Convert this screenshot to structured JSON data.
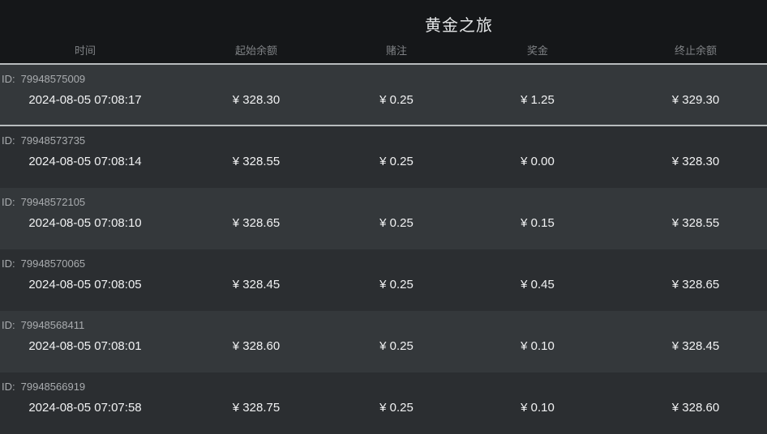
{
  "title": "黄金之旅",
  "table": {
    "columns": [
      "时间",
      "起始余额",
      "赌注",
      "奖金",
      "终止余额"
    ],
    "id_prefix": "ID:",
    "rows": [
      {
        "id": "79948575009",
        "time": "2024-08-05 07:08:17",
        "start_balance": "¥ 328.30",
        "bet": "¥ 0.25",
        "prize": "¥ 1.25",
        "end_balance": "¥ 329.30"
      },
      {
        "id": "79948573735",
        "time": "2024-08-05 07:08:14",
        "start_balance": "¥ 328.55",
        "bet": "¥ 0.25",
        "prize": "¥ 0.00",
        "end_balance": "¥ 328.30"
      },
      {
        "id": "79948572105",
        "time": "2024-08-05 07:08:10",
        "start_balance": "¥ 328.65",
        "bet": "¥ 0.25",
        "prize": "¥ 0.15",
        "end_balance": "¥ 328.55"
      },
      {
        "id": "79948570065",
        "time": "2024-08-05 07:08:05",
        "start_balance": "¥ 328.45",
        "bet": "¥ 0.25",
        "prize": "¥ 0.45",
        "end_balance": "¥ 328.65"
      },
      {
        "id": "79948568411",
        "time": "2024-08-05 07:08:01",
        "start_balance": "¥ 328.60",
        "bet": "¥ 0.25",
        "prize": "¥ 0.10",
        "end_balance": "¥ 328.45"
      },
      {
        "id": "79948566919",
        "time": "2024-08-05 07:07:58",
        "start_balance": "¥ 328.75",
        "bet": "¥ 0.25",
        "prize": "¥ 0.10",
        "end_balance": "¥ 328.60"
      }
    ]
  },
  "colors": {
    "page_bg": "#151719",
    "row_light": "#34383b",
    "row_dark": "#2b2e31",
    "separator": "#b8bcbe",
    "title_text": "#e3e5e6",
    "column_header_text": "#7f8285",
    "id_text": "#a9acaf",
    "value_text": "#f1f2f3"
  }
}
